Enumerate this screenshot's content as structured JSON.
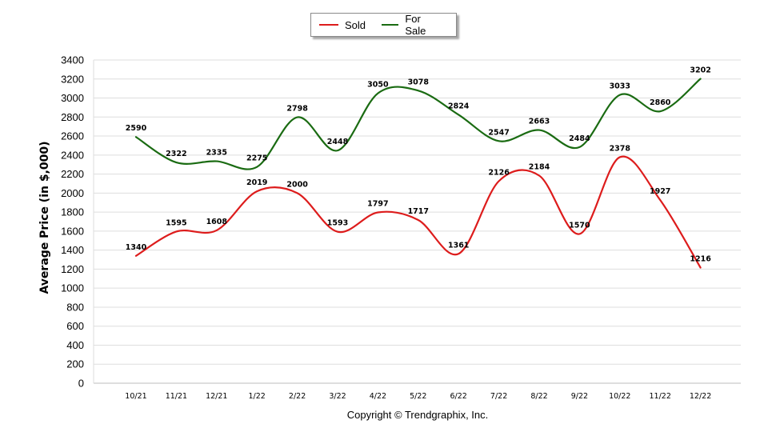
{
  "chart_data": {
    "type": "line",
    "title": "",
    "xlabel": "",
    "ylabel": "Average Price (in $,000)",
    "categories": [
      "10/21",
      "11/21",
      "12/21",
      "1/22",
      "2/22",
      "3/22",
      "4/22",
      "5/22",
      "6/22",
      "7/22",
      "8/22",
      "9/22",
      "10/22",
      "11/22",
      "12/22"
    ],
    "ylim": [
      0,
      3400
    ],
    "yticks": [
      0,
      200,
      400,
      600,
      800,
      1000,
      1200,
      1400,
      1600,
      1800,
      2000,
      2200,
      2400,
      2600,
      2800,
      3000,
      3200,
      3400
    ],
    "grid": true,
    "legend_position": "top-center",
    "series": [
      {
        "name": "Sold",
        "color": "#dd1c1c",
        "values": [
          1340,
          1595,
          1608,
          2019,
          2000,
          1593,
          1797,
          1717,
          1361,
          2126,
          2184,
          1570,
          2378,
          1927,
          1216
        ]
      },
      {
        "name": "For Sale",
        "color": "#1a6b12",
        "values": [
          2590,
          2322,
          2335,
          2275,
          2798,
          2448,
          3050,
          3078,
          2824,
          2547,
          2663,
          2484,
          3033,
          2860,
          3202
        ]
      }
    ]
  },
  "copyright": "Copyright © Trendgraphix, Inc."
}
